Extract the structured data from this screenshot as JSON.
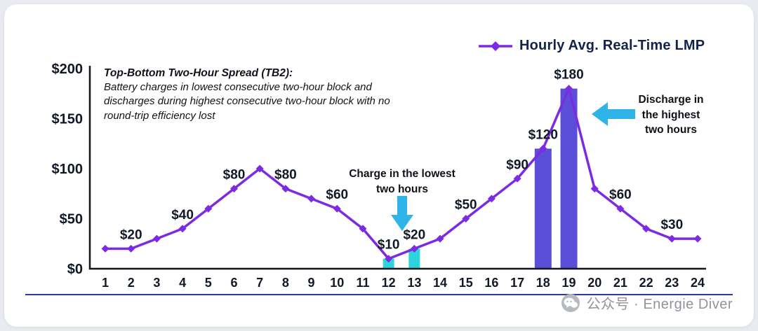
{
  "legend": {
    "series_label": "Hourly Avg. Real-Time LMP"
  },
  "annotations": {
    "tb2_title": "Top-Bottom Two-Hour Spread (TB2):",
    "tb2_body": "Battery charges in lowest consecutive two-hour block and discharges during highest consecutive two-hour block with no round-trip efficiency lost",
    "charge_note": "Charge in the lowest\ntwo hours",
    "discharge_note": "Discharge in\nthe highest\ntwo hours"
  },
  "watermark": {
    "text": "公众号 · Energie Diver"
  },
  "chart_data": {
    "type": "line",
    "x": [
      1,
      2,
      3,
      4,
      5,
      6,
      7,
      8,
      9,
      10,
      11,
      12,
      13,
      14,
      15,
      16,
      17,
      18,
      19,
      20,
      21,
      22,
      23,
      24
    ],
    "series": [
      {
        "name": "Hourly Avg. Real-Time LMP",
        "values": [
          20,
          20,
          30,
          40,
          60,
          80,
          100,
          80,
          70,
          60,
          40,
          10,
          20,
          30,
          50,
          70,
          90,
          120,
          180,
          80,
          60,
          40,
          30,
          30
        ]
      }
    ],
    "bars": [
      {
        "x": 12,
        "value": 10,
        "kind": "charge"
      },
      {
        "x": 13,
        "value": 20,
        "kind": "charge"
      },
      {
        "x": 18,
        "value": 120,
        "kind": "discharge"
      },
      {
        "x": 19,
        "value": 180,
        "kind": "discharge"
      }
    ],
    "point_labels": [
      {
        "x": 2,
        "label": "$20"
      },
      {
        "x": 4,
        "label": "$40"
      },
      {
        "x": 6,
        "label": "$80"
      },
      {
        "x": 8,
        "label": "$80"
      },
      {
        "x": 10,
        "label": "$60"
      },
      {
        "x": 12,
        "label": "$10"
      },
      {
        "x": 13,
        "label": "$20"
      },
      {
        "x": 15,
        "label": "$50"
      },
      {
        "x": 17,
        "label": "$90"
      },
      {
        "x": 18,
        "label": "$120"
      },
      {
        "x": 19,
        "label": "$180"
      },
      {
        "x": 21,
        "label": "$60"
      },
      {
        "x": 23,
        "label": "$30"
      }
    ],
    "ylim": [
      0,
      200
    ],
    "yticks": [
      0,
      50,
      100,
      150,
      200
    ],
    "ytick_labels": [
      "$0",
      "$50",
      "$100",
      "$150",
      "$200"
    ],
    "grid": false,
    "legend_position": "top-right",
    "colors": {
      "line": "#7c2be2",
      "charge": "#2bd5db",
      "discharge": "#5a4fd6",
      "arrow": "#2eb4e9",
      "axis": "#15161c",
      "label": "#111827"
    }
  }
}
